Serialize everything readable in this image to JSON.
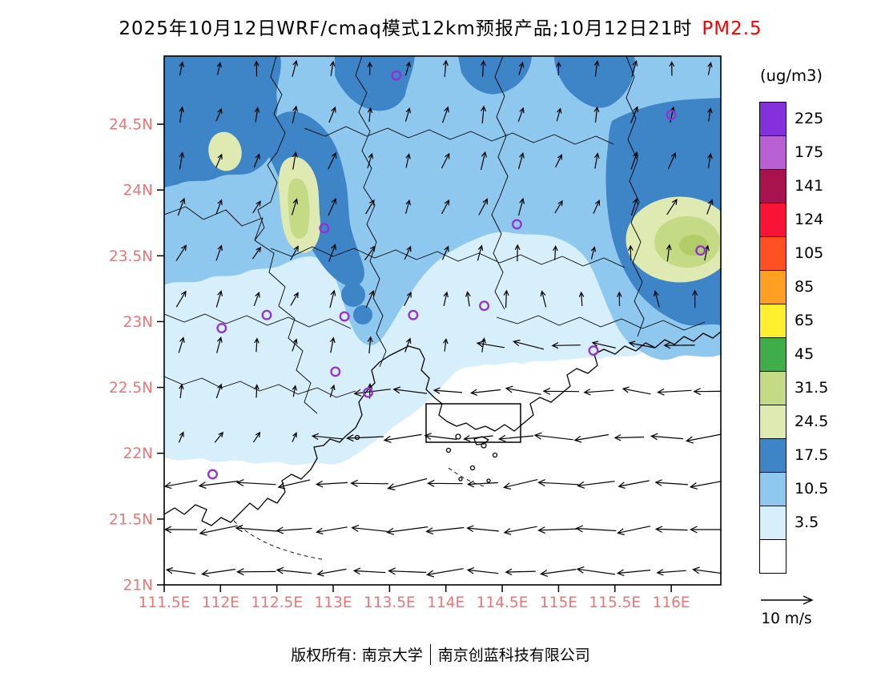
{
  "title": {
    "main": "2025年10月12日WRF/cmaq模式12km预报产品;10月12日21时",
    "species": "PM2.5"
  },
  "colorbar": {
    "units": "(ug/m3)"
  },
  "wind_reference": {
    "label": "10 m/s"
  },
  "footer": {
    "left": "版权所有: 南京大学",
    "right": "南京创蓝科技有限公司"
  },
  "colors": {
    "title_text": "#000000",
    "species_text": "#f50000",
    "axis_labels": "#ec7474",
    "city_marker": "#9430d2",
    "frame": "#000000"
  },
  "axes": {
    "lat": [
      {
        "label": "24.5N",
        "value": 24.5
      },
      {
        "label": "24N",
        "value": 24
      },
      {
        "label": "23.5N",
        "value": 23.5
      },
      {
        "label": "23N",
        "value": 23
      },
      {
        "label": "22.5N",
        "value": 22.5
      },
      {
        "label": "22N",
        "value": 22
      },
      {
        "label": "21.5N",
        "value": 21.5
      },
      {
        "label": "21N",
        "value": 21
      }
    ],
    "lon": [
      {
        "label": "111.5E",
        "value": 111.5
      },
      {
        "label": "112E",
        "value": 112
      },
      {
        "label": "112.5E",
        "value": 112.5
      },
      {
        "label": "113E",
        "value": 113
      },
      {
        "label": "113.5E",
        "value": 113.5
      },
      {
        "label": "114E",
        "value": 114
      },
      {
        "label": "114.5E",
        "value": 114.5
      },
      {
        "label": "115E",
        "value": 115
      },
      {
        "label": "115.5E",
        "value": 115.5
      },
      {
        "label": "116E",
        "value": 116
      }
    ]
  },
  "chart_data": {
    "type": "heatmap",
    "variant": "filled-contour-forecast-map-with-wind-vectors",
    "title": "2025年10月12日WRF/cmaq模式12km预报产品;10月12日21时 PM2.5",
    "units": "(ug/m3)",
    "lon_range": [
      111.5,
      116.44
    ],
    "lat_range": [
      21.0,
      25.0
    ],
    "levels": [
      3.5,
      10.5,
      17.5,
      24.5,
      31.5,
      45,
      65,
      85,
      105,
      124,
      141,
      175,
      225
    ],
    "palette": [
      "#ffffff",
      "#d7eefb",
      "#8fc8ef",
      "#3d85c6",
      "#dfeab2",
      "#c4da85",
      "#3fae49",
      "#ffef2e",
      "#ffa023",
      "#ff5023",
      "#f91437",
      "#a8134e",
      "#b85fd4",
      "#8431dd"
    ],
    "field_summary": "PM2.5 10.5-24.5 ug/m3 band across northern Guangdong with local maxima 24.5-45 ug/m3 near 112.7E/24.1N, 112.1E/24.4N and 115.9E/23.5N; values fall below 10.5 through central Guangdong and below 3.5 along the southern coast and offshore.",
    "wind_summary": "Easterly flow ~8-10 m/s over the coastal sea south of ~22.8N; weak northward/northeastward vectors over inland northern Guangdong.",
    "wind_rows": [
      {
        "lat": 24.92,
        "segments": [
          {
            "lon0": 111.65,
            "lon1": 116.4,
            "dir": 82,
            "len": 18
          }
        ]
      },
      {
        "lat": 24.57,
        "segments": [
          {
            "lon0": 111.65,
            "lon1": 116.4,
            "dir": 76,
            "len": 19
          }
        ]
      },
      {
        "lat": 24.22,
        "segments": [
          {
            "lon0": 111.65,
            "lon1": 116.4,
            "dir": 72,
            "len": 20
          }
        ]
      },
      {
        "lat": 23.87,
        "segments": [
          {
            "lon0": 111.65,
            "lon1": 116.4,
            "dir": 66,
            "len": 20
          }
        ]
      },
      {
        "lat": 23.52,
        "segments": [
          {
            "lon0": 111.65,
            "lon1": 114.3,
            "dir": 62,
            "len": 20
          },
          {
            "lon0": 114.3,
            "lon1": 116.4,
            "dir": 84,
            "len": 18
          }
        ]
      },
      {
        "lat": 23.17,
        "segments": [
          {
            "lon0": 111.65,
            "lon1": 114.2,
            "dir": 68,
            "len": 20
          },
          {
            "lon0": 114.2,
            "lon1": 116.4,
            "dir": 96,
            "len": 19
          }
        ]
      },
      {
        "lat": 22.82,
        "segments": [
          {
            "lon0": 111.65,
            "lon1": 114.4,
            "dir": 78,
            "len": 18
          },
          {
            "lon0": 114.4,
            "lon1": 116.4,
            "dir": 172,
            "len": 34
          }
        ]
      },
      {
        "lat": 22.47,
        "segments": [
          {
            "lon0": 111.65,
            "lon1": 113.35,
            "dir": 80,
            "len": 16
          },
          {
            "lon0": 113.35,
            "lon1": 116.4,
            "dir": 178,
            "len": 40
          }
        ]
      },
      {
        "lat": 22.12,
        "segments": [
          {
            "lon0": 111.65,
            "lon1": 112.95,
            "dir": 58,
            "len": 14
          },
          {
            "lon0": 112.95,
            "lon1": 116.4,
            "dir": 182,
            "len": 42
          }
        ]
      },
      {
        "lat": 21.77,
        "segments": [
          {
            "lon0": 111.65,
            "lon1": 116.4,
            "dir": 185,
            "len": 44
          }
        ]
      },
      {
        "lat": 21.42,
        "segments": [
          {
            "lon0": 111.65,
            "lon1": 116.4,
            "dir": 183,
            "len": 45
          }
        ]
      },
      {
        "lat": 21.1,
        "segments": [
          {
            "lon0": 111.65,
            "lon1": 116.4,
            "dir": 181,
            "len": 42
          }
        ]
      }
    ],
    "city_markers": [
      [
        113.56,
        24.87
      ],
      [
        116.0,
        24.57
      ],
      [
        112.92,
        23.71
      ],
      [
        114.63,
        23.74
      ],
      [
        116.26,
        23.54
      ],
      [
        113.1,
        23.04
      ],
      [
        112.01,
        22.95
      ],
      [
        112.41,
        23.05
      ],
      [
        113.71,
        23.05
      ],
      [
        114.34,
        23.12
      ],
      [
        115.31,
        22.78
      ],
      [
        113.02,
        22.62
      ],
      [
        113.31,
        22.46
      ],
      [
        111.93,
        21.84
      ]
    ],
    "wind_reference": {
      "speed": 10,
      "label": "10 m/s"
    }
  }
}
